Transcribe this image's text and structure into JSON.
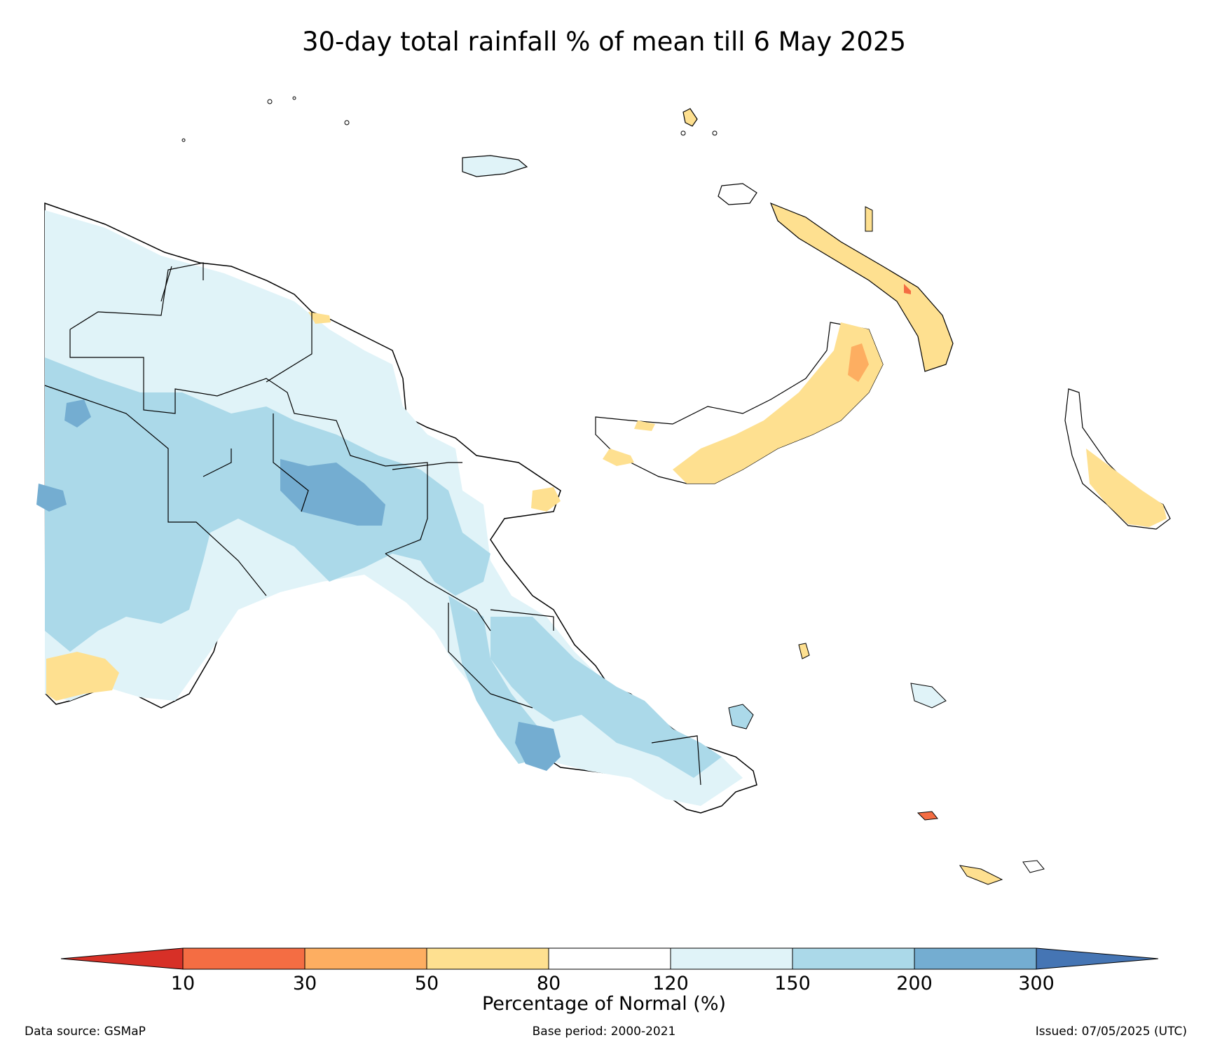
{
  "title": "30-day total rainfall % of mean till 6 May 2025",
  "colorbar": {
    "label": "Percentage of Normal (%)",
    "ticks": [
      "10",
      "30",
      "50",
      "80",
      "120",
      "150",
      "200",
      "300"
    ],
    "colors": [
      "#d73027",
      "#f46d43",
      "#fdae61",
      "#fee090",
      "#ffffff",
      "#e0f3f8",
      "#abd9e9",
      "#74add1",
      "#4575b4"
    ]
  },
  "footer": {
    "source": "Data source: GSMaP",
    "base_period": "Base period: 2000-2021",
    "issued": "Issued: 07/05/2025 (UTC)"
  },
  "legend_classes": {
    "dry_strong": "#f46d43",
    "dry": "#fdae61",
    "dry_light": "#fee090",
    "normal": "#ffffff",
    "wet_light": "#e0f3f8",
    "wet": "#abd9e9",
    "wet_strong": "#74add1"
  }
}
